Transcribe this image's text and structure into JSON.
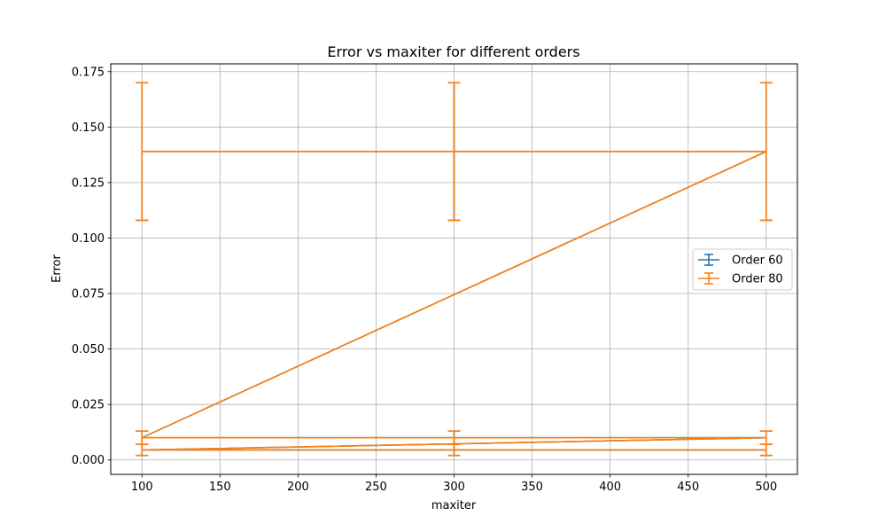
{
  "chart_data": {
    "type": "line",
    "title": "Error vs maxiter for different orders",
    "xlabel": "maxiter",
    "ylabel": "Error",
    "xlim": [
      80,
      520
    ],
    "ylim": [
      -0.0065,
      0.1785
    ],
    "xticks": [
      100,
      150,
      200,
      250,
      300,
      350,
      400,
      450,
      500
    ],
    "yticks": [
      0.0,
      0.025,
      0.05,
      0.075,
      0.1,
      0.125,
      0.15,
      0.175
    ],
    "ytick_labels": [
      "0.000",
      "0.025",
      "0.050",
      "0.075",
      "0.100",
      "0.125",
      "0.150",
      "0.175"
    ],
    "grid": true,
    "legend_position": "center-right",
    "series": [
      {
        "name": "Order 60",
        "color": "#1f77b4",
        "x": [
          100,
          300,
          500,
          100,
          300,
          500,
          100,
          300,
          500
        ],
        "y": [
          0.139,
          0.139,
          0.139,
          0.01,
          0.01,
          0.01,
          0.0045,
          0.0045,
          0.0045
        ],
        "yerr": [
          0.031,
          0.031,
          0.031,
          0.003,
          0.003,
          0.003,
          0.0025,
          0.0025,
          0.0025
        ]
      },
      {
        "name": "Order 80",
        "color": "#ff7f0e",
        "x": [
          100,
          300,
          500,
          100,
          300,
          500,
          100,
          300,
          500
        ],
        "y": [
          0.139,
          0.139,
          0.139,
          0.01,
          0.01,
          0.01,
          0.0045,
          0.0045,
          0.0045
        ],
        "yerr": [
          0.031,
          0.031,
          0.031,
          0.003,
          0.003,
          0.003,
          0.0025,
          0.0025,
          0.0025
        ]
      }
    ]
  }
}
